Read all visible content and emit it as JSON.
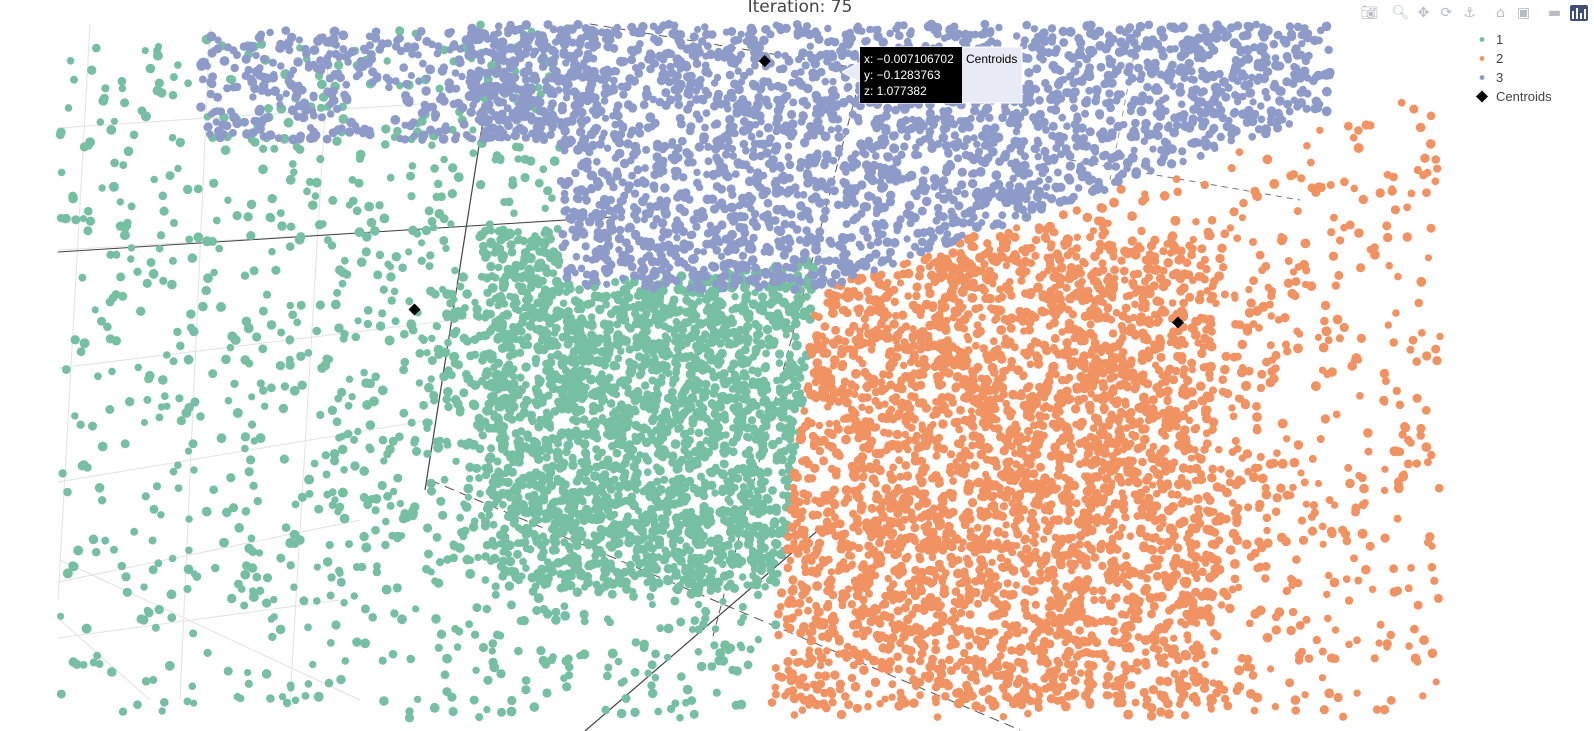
{
  "chart_data": {
    "type": "scatter",
    "title": "Iteration: 75",
    "series": [
      {
        "name": "1",
        "color": "#76bfa3",
        "centroid": {
          "x": -0.85,
          "y": 0.15,
          "z": 0.1
        }
      },
      {
        "name": "2",
        "color": "#f09262",
        "centroid": {
          "x": 0.85,
          "y": -0.5,
          "z": -0.1
        }
      },
      {
        "name": "3",
        "color": "#8e9bc8",
        "centroid": {
          "x": -0.007106702,
          "y": -0.1283763,
          "z": 1.077382
        }
      }
    ],
    "centroids_label": "Centroids",
    "centroids_color": "#000000",
    "legend_position": "top-right",
    "hover": {
      "x_text": "x: −0.007106702",
      "y_text": "y: −0.1283763",
      "z_text": "z: 1.077382",
      "name": "Centroids"
    }
  },
  "modebar": {
    "icons": [
      "camera-icon",
      "zoom-icon",
      "pan-icon",
      "orbit-rotation-icon",
      "turntable-rotation-icon",
      "reset-camera-icon",
      "last-save-camera-icon",
      "hover-toggle-icon",
      "plotly-logo-icon"
    ]
  }
}
